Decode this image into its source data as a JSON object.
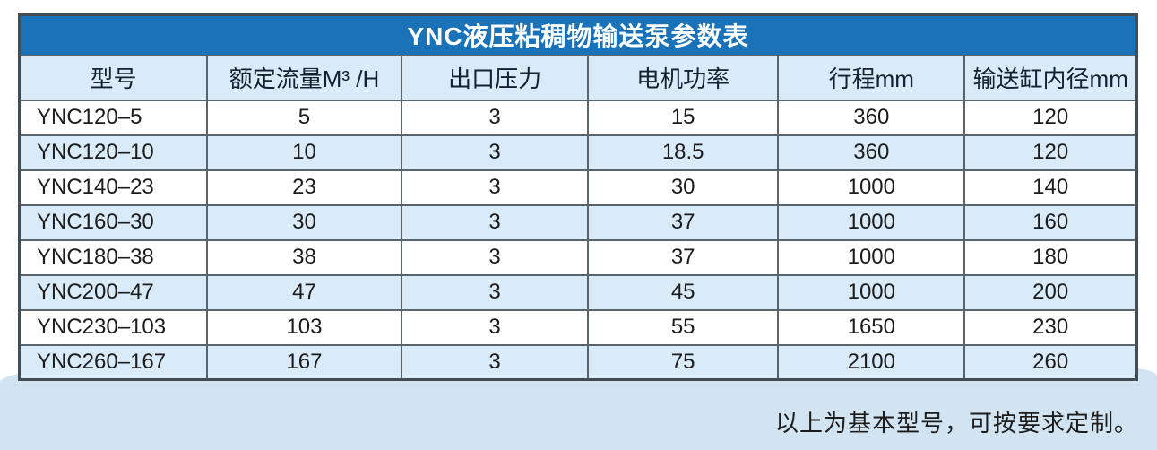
{
  "table": {
    "title": "YNC液压粘稠物输送泵参数表",
    "columns": [
      "型号",
      "额定流量M³ /H",
      "出口压力",
      "电机功率",
      "行程mm",
      "输送缸内径mm"
    ],
    "rows": [
      [
        "YNC120–5",
        "5",
        "3",
        "15",
        "360",
        "120"
      ],
      [
        "YNC120–10",
        "10",
        "3",
        "18.5",
        "360",
        "120"
      ],
      [
        "YNC140–23",
        "23",
        "3",
        "30",
        "1000",
        "140"
      ],
      [
        "YNC160–30",
        "30",
        "3",
        "37",
        "1000",
        "160"
      ],
      [
        "YNC180–38",
        "38",
        "3",
        "37",
        "1000",
        "180"
      ],
      [
        "YNC200–47",
        "47",
        "3",
        "45",
        "1000",
        "200"
      ],
      [
        "YNC230–103",
        "103",
        "3",
        "55",
        "1650",
        "230"
      ],
      [
        "YNC260–167",
        "167",
        "3",
        "75",
        "2100",
        "260"
      ]
    ]
  },
  "footer": {
    "note": "以上为基本型号，可按要求定制。"
  },
  "colors": {
    "title_bar": "#1a73b9",
    "row_alt": "#d9eaf8",
    "band": "#d2e4f1",
    "border": "#5a646d",
    "border_outer": "#434d56"
  }
}
